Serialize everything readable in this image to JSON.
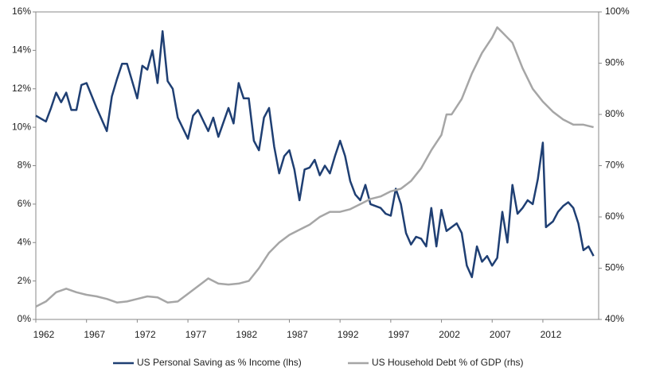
{
  "chart_data": {
    "type": "line",
    "xlim": [
      1962,
      2017.5
    ],
    "xticks": [
      1962,
      1967,
      1972,
      1977,
      1982,
      1987,
      1992,
      1997,
      2002,
      2007,
      2012
    ],
    "ylim": [
      0,
      16
    ],
    "yticks": [
      {
        "value": 0,
        "label": "0%"
      },
      {
        "value": 2,
        "label": "2%"
      },
      {
        "value": 4,
        "label": "4%"
      },
      {
        "value": 6,
        "label": "6%"
      },
      {
        "value": 8,
        "label": "8%"
      },
      {
        "value": 10,
        "label": "10%"
      },
      {
        "value": 12,
        "label": "12%"
      },
      {
        "value": 14,
        "label": "14%"
      },
      {
        "value": 16,
        "label": "16%"
      }
    ],
    "y2lim": [
      40,
      100
    ],
    "y2ticks": [
      {
        "value": 40,
        "label": "40%"
      },
      {
        "value": 50,
        "label": "50%"
      },
      {
        "value": 60,
        "label": "60%"
      },
      {
        "value": 70,
        "label": "70%"
      },
      {
        "value": 80,
        "label": "80%"
      },
      {
        "value": 90,
        "label": "90%"
      },
      {
        "value": 100,
        "label": "100%"
      }
    ],
    "legend": "bottom",
    "series": [
      {
        "name": "US Personal Saving as % Income (lhs)",
        "color": "#1f3f73",
        "x": [
          1962,
          1963,
          1963.5,
          1964,
          1964.5,
          1965,
          1965.5,
          1966,
          1966.5,
          1967,
          1968,
          1968.5,
          1969,
          1969.5,
          1970,
          1970.5,
          1971,
          1972,
          1972.5,
          1973,
          1973.5,
          1974,
          1974.5,
          1975,
          1975.5,
          1976,
          1977,
          1977.5,
          1978,
          1979,
          1979.5,
          1980,
          1981,
          1981.5,
          1982,
          1982.5,
          1983,
          1983.5,
          1984,
          1984.5,
          1985,
          1985.5,
          1986,
          1986.5,
          1987,
          1987.5,
          1988,
          1988.5,
          1989,
          1989.5,
          1990,
          1990.5,
          1991,
          1991.5,
          1992,
          1992.5,
          1993,
          1993.5,
          1994,
          1994.5,
          1995,
          1996,
          1996.5,
          1997,
          1997.5,
          1998,
          1998.5,
          1999,
          1999.5,
          2000,
          2000.5,
          2001,
          2001.5,
          2002,
          2002.5,
          2003,
          2003.5,
          2004,
          2004.5,
          2005,
          2005.5,
          2006,
          2006.5,
          2007,
          2007.5,
          2008,
          2008.5,
          2009,
          2009.5,
          2010,
          2010.5,
          2011,
          2011.5,
          2012,
          2012.3,
          2013,
          2013.5,
          2014,
          2014.5,
          2015,
          2015.5,
          2016,
          2016.5,
          2017
        ],
        "values": [
          10.6,
          10.3,
          11.0,
          11.8,
          11.3,
          11.8,
          10.9,
          10.9,
          12.2,
          12.3,
          11.0,
          10.4,
          9.8,
          11.6,
          12.5,
          13.3,
          13.3,
          11.5,
          13.2,
          13.0,
          14.0,
          12.3,
          15.0,
          12.4,
          12.0,
          10.5,
          9.4,
          10.6,
          10.9,
          9.8,
          10.5,
          9.5,
          11.0,
          10.2,
          12.3,
          11.5,
          11.5,
          9.3,
          8.8,
          10.5,
          11.0,
          9.0,
          7.6,
          8.5,
          8.8,
          7.8,
          6.2,
          7.8,
          7.9,
          8.3,
          7.5,
          8.0,
          7.6,
          8.5,
          9.3,
          8.5,
          7.2,
          6.5,
          6.2,
          7.0,
          6.0,
          5.8,
          5.5,
          5.4,
          6.8,
          6.0,
          4.5,
          3.9,
          4.3,
          4.2,
          3.8,
          5.8,
          3.8,
          5.7,
          4.6,
          4.8,
          5.0,
          4.5,
          2.8,
          2.2,
          3.8,
          3.0,
          3.3,
          2.8,
          3.2,
          5.6,
          4.0,
          7.0,
          5.5,
          5.8,
          6.2,
          6.0,
          7.3,
          9.2,
          4.8,
          5.1,
          5.6,
          5.9,
          6.1,
          5.8,
          5.0,
          3.6,
          3.8,
          3.3
        ]
      },
      {
        "name": "US Household Debt % of GDP (rhs)",
        "color": "#a6a6a6",
        "axis": "y2",
        "x": [
          1962,
          1963,
          1964,
          1965,
          1966,
          1967,
          1968,
          1969,
          1970,
          1971,
          1972,
          1973,
          1974,
          1975,
          1976,
          1977,
          1978,
          1979,
          1980,
          1981,
          1982,
          1983,
          1984,
          1985,
          1986,
          1987,
          1988,
          1989,
          1990,
          1991,
          1992,
          1993,
          1994,
          1995,
          1996,
          1997,
          1998,
          1999,
          2000,
          2001,
          2002,
          2002.5,
          2003,
          2004,
          2005,
          2006,
          2007,
          2007.5,
          2008,
          2009,
          2010,
          2011,
          2012,
          2013,
          2014,
          2015,
          2016,
          2017
        ],
        "values": [
          42.5,
          43.5,
          45.3,
          46,
          45.3,
          44.8,
          44.5,
          44.0,
          43.3,
          43.5,
          44,
          44.5,
          44.3,
          43.3,
          43.5,
          45,
          46.5,
          48,
          47,
          46.8,
          47,
          47.5,
          50,
          53,
          55,
          56.5,
          57.5,
          58.5,
          60,
          61,
          61,
          61.5,
          62.5,
          63.5,
          64,
          65,
          65.5,
          67,
          69.5,
          73,
          76,
          80,
          80,
          83,
          88,
          92,
          95,
          97,
          96,
          94,
          89,
          85,
          82.5,
          80.5,
          79,
          78,
          78,
          77.5
        ]
      }
    ]
  }
}
